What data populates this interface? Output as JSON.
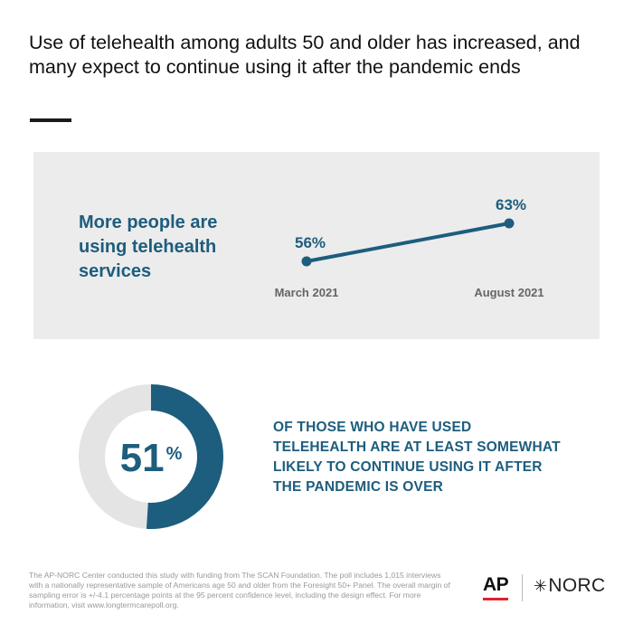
{
  "header": {
    "title": "Use of telehealth among adults 50 and older has increased, and many expect to continue using it after the pandemic ends"
  },
  "panel": {
    "heading": "More people are using telehealth services"
  },
  "finding": {
    "text": "OF THOSE WHO HAVE USED TELEHEALTH ARE AT LEAST SOMEWHAT LIKELY TO CONTINUE USING IT AFTER THE PANDEMIC IS OVER"
  },
  "donut": {
    "number": "51",
    "unit": "%"
  },
  "footer": {
    "note": "The AP-NORC Center conducted this study with funding from The SCAN Foundation. The poll includes 1,015 interviews with a nationally representative sample of Americans age 50 and older from the Foresight 50+ Panel. The overall margin of sampling error is +/-4.1 percentage points at the 95 percent confidence level, including the design effect. For more information, visit www.longtermcarepoll.org.",
    "logo_ap": "AP",
    "logo_norc_star": "✳",
    "logo_norc": "NORC"
  },
  "colors": {
    "accent": "#1d5d7e",
    "donut_track": "#e4e4e4",
    "panel_bg": "#ececec",
    "ap_red": "#e4202c"
  },
  "chart_data": [
    {
      "type": "line",
      "categories": [
        "March 2021",
        "August 2021"
      ],
      "series": [
        {
          "values": [
            56,
            63
          ],
          "labels": [
            "56%",
            "63%"
          ]
        }
      ],
      "grid": false,
      "legend": "none"
    },
    {
      "type": "pie",
      "donut": true,
      "slices": [
        {
          "label": "51%",
          "value": 51
        },
        {
          "value": 49
        }
      ]
    }
  ]
}
